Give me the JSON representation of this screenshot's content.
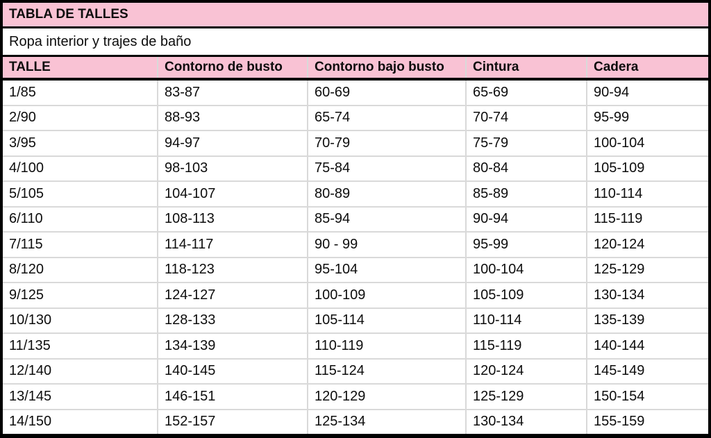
{
  "chart_data": {
    "type": "table",
    "title": "TABLA DE TALLES",
    "subtitle": "Ropa interior y trajes de baño",
    "columns": [
      "TALLE",
      "Contorno de busto",
      "Contorno bajo busto",
      "Cintura",
      "Cadera"
    ],
    "rows": [
      [
        "1/85",
        "83-87",
        "60-69",
        "65-69",
        "90-94"
      ],
      [
        "2/90",
        "88-93",
        "65-74",
        "70-74",
        "95-99"
      ],
      [
        "3/95",
        "94-97",
        "70-79",
        "75-79",
        "100-104"
      ],
      [
        "4/100",
        "98-103",
        "75-84",
        "80-84",
        "105-109"
      ],
      [
        "5/105",
        "104-107",
        "80-89",
        "85-89",
        "110-114"
      ],
      [
        "6/110",
        "108-113",
        "85-94",
        "90-94",
        "115-119"
      ],
      [
        "7/115",
        "114-117",
        "90 - 99",
        "95-99",
        "120-124"
      ],
      [
        "8/120",
        "118-123",
        "95-104",
        "100-104",
        "125-129"
      ],
      [
        "9/125",
        "124-127",
        "100-109",
        "105-109",
        "130-134"
      ],
      [
        "10/130",
        "128-133",
        "105-114",
        "110-114",
        "135-139"
      ],
      [
        "11/135",
        "134-139",
        "110-119",
        "115-119",
        "140-144"
      ],
      [
        "12/140",
        "140-145",
        "115-124",
        "120-124",
        "145-149"
      ],
      [
        "13/145",
        "146-151",
        "120-129",
        "125-129",
        "150-154"
      ],
      [
        "14/150",
        "152-157",
        "125-134",
        "130-134",
        "155-159"
      ]
    ],
    "layout": {
      "legend": "none",
      "grid": "on"
    },
    "colors": {
      "header_fill": "#f9c2d4",
      "frame_border": "#000000",
      "grid_line": "#d9d9d9",
      "text": "#0d0d0d",
      "body_fill": "#ffffff"
    }
  }
}
